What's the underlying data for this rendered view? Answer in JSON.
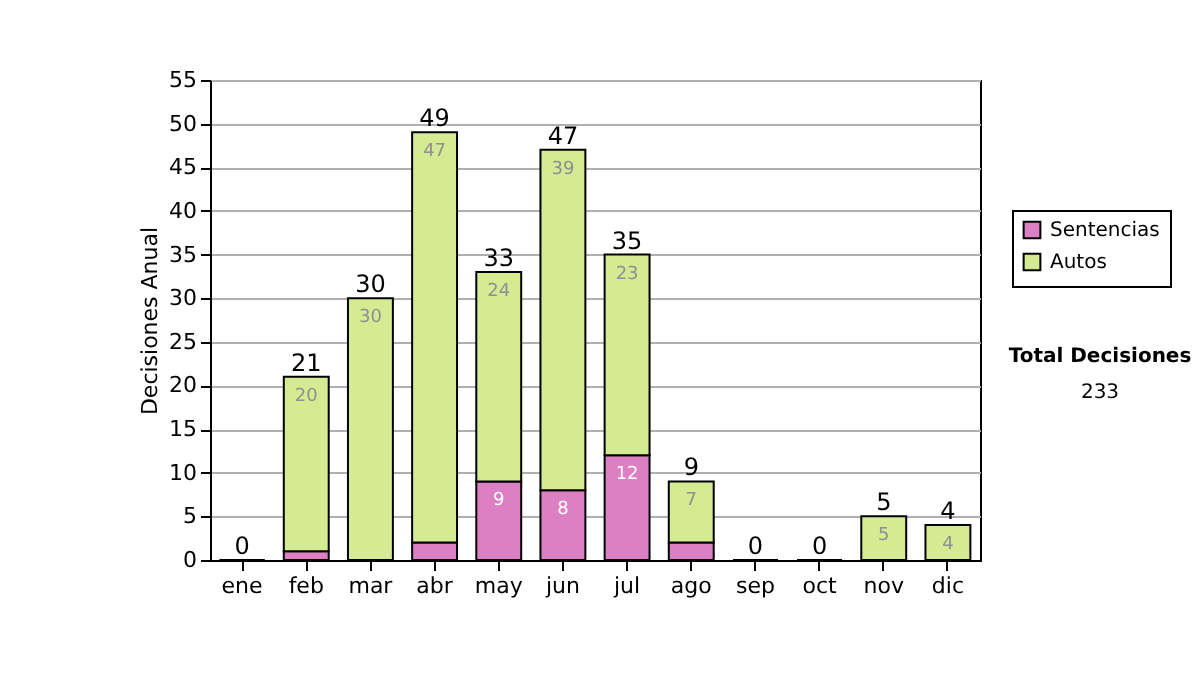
{
  "chart_data": {
    "type": "bar",
    "stacked": true,
    "categories": [
      "ene",
      "feb",
      "mar",
      "abr",
      "may",
      "jun",
      "jul",
      "ago",
      "sep",
      "oct",
      "nov",
      "dic"
    ],
    "series": [
      {
        "name": "Sentencias",
        "color": "#dc80c3",
        "values": [
          0,
          1,
          0,
          2,
          9,
          8,
          12,
          2,
          0,
          0,
          0,
          0
        ],
        "value_labels": [
          null,
          null,
          null,
          null,
          "9",
          "8",
          "12",
          null,
          null,
          null,
          null,
          null
        ]
      },
      {
        "name": "Autos",
        "color": "#d4eb94",
        "values": [
          0,
          20,
          30,
          47,
          24,
          39,
          23,
          7,
          0,
          0,
          5,
          4
        ],
        "value_labels": [
          null,
          "20",
          "30",
          "47",
          "24",
          "39",
          "23",
          "7",
          null,
          null,
          "5",
          "4"
        ]
      }
    ],
    "totals": [
      "0",
      "21",
      "30",
      "49",
      "33",
      "47",
      "35",
      "9",
      "0",
      "0",
      "5",
      "4"
    ],
    "ylabel": "Decisiones Anual",
    "ylim": [
      0,
      55
    ],
    "yticks": [
      0,
      5,
      10,
      15,
      20,
      25,
      30,
      35,
      40,
      45,
      50,
      55
    ],
    "grid": "y",
    "legend": "right",
    "annotations": [
      "Total Decisiones",
      "233"
    ]
  }
}
